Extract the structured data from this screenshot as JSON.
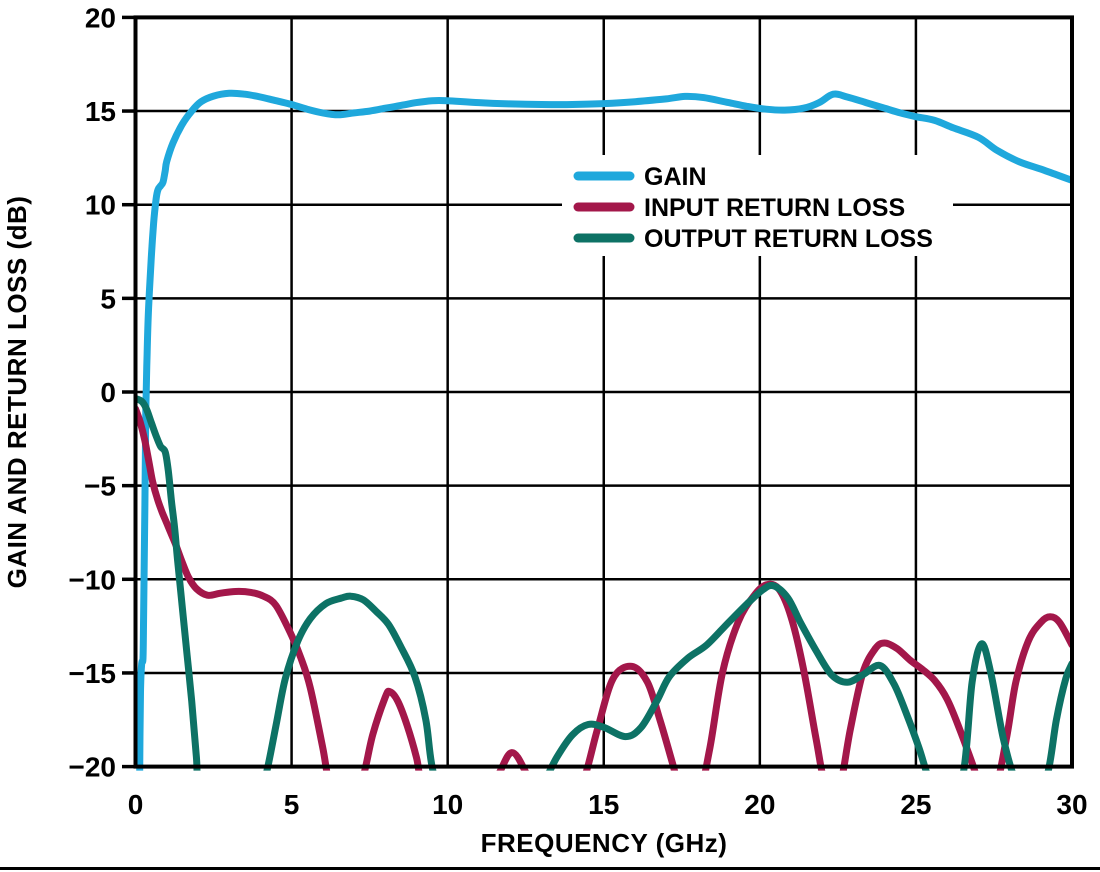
{
  "page": {
    "background": "#ffffff",
    "border_color": "#000000"
  },
  "chart_data": {
    "type": "line",
    "title": "",
    "xlabel": "FREQUENCY (GHz)",
    "ylabel": "GAIN AND RETURN LOSS (dB)",
    "xlim": [
      0,
      30
    ],
    "ylim": [
      -20,
      20
    ],
    "x_ticks": [
      0,
      5,
      10,
      15,
      20,
      25,
      30
    ],
    "y_ticks": [
      20,
      15,
      10,
      5,
      0,
      -5,
      -10,
      -15,
      -20
    ],
    "grid": true,
    "legend_position": "inside upper-center",
    "series": [
      {
        "name": "GAIN",
        "color": "#1FA8DC",
        "points": [
          [
            0.13,
            -21
          ],
          [
            0.16,
            -16
          ],
          [
            0.2,
            -14.5
          ],
          [
            0.24,
            -14.2
          ],
          [
            0.26,
            -12
          ],
          [
            0.3,
            -6
          ],
          [
            0.33,
            -1
          ],
          [
            0.37,
            2
          ],
          [
            0.42,
            4.5
          ],
          [
            0.5,
            7
          ],
          [
            0.58,
            9
          ],
          [
            0.66,
            10.3
          ],
          [
            0.72,
            10.8
          ],
          [
            0.8,
            11.0
          ],
          [
            0.88,
            11.2
          ],
          [
            0.95,
            11.8
          ],
          [
            1.0,
            12.3
          ],
          [
            1.2,
            13.3
          ],
          [
            1.5,
            14.3
          ],
          [
            1.8,
            15.0
          ],
          [
            2.1,
            15.5
          ],
          [
            2.5,
            15.8
          ],
          [
            3.0,
            15.95
          ],
          [
            3.5,
            15.9
          ],
          [
            4.0,
            15.75
          ],
          [
            4.5,
            15.55
          ],
          [
            5.0,
            15.35
          ],
          [
            5.5,
            15.1
          ],
          [
            6.0,
            14.9
          ],
          [
            6.5,
            14.8
          ],
          [
            7.0,
            14.9
          ],
          [
            7.5,
            15.0
          ],
          [
            8.0,
            15.15
          ],
          [
            8.5,
            15.3
          ],
          [
            9.0,
            15.45
          ],
          [
            9.5,
            15.55
          ],
          [
            10.0,
            15.55
          ],
          [
            11,
            15.45
          ],
          [
            12,
            15.38
          ],
          [
            13,
            15.35
          ],
          [
            14,
            15.35
          ],
          [
            15,
            15.4
          ],
          [
            16,
            15.5
          ],
          [
            17,
            15.65
          ],
          [
            17.6,
            15.78
          ],
          [
            18.2,
            15.72
          ],
          [
            19,
            15.45
          ],
          [
            19.6,
            15.25
          ],
          [
            20.2,
            15.1
          ],
          [
            20.8,
            15.05
          ],
          [
            21.4,
            15.15
          ],
          [
            21.9,
            15.45
          ],
          [
            22.35,
            15.9
          ],
          [
            22.8,
            15.75
          ],
          [
            23.4,
            15.45
          ],
          [
            24,
            15.15
          ],
          [
            24.5,
            14.9
          ],
          [
            25,
            14.7
          ],
          [
            25.6,
            14.5
          ],
          [
            26.2,
            14.1
          ],
          [
            27,
            13.6
          ],
          [
            27.6,
            12.9
          ],
          [
            28.3,
            12.3
          ],
          [
            29,
            11.9
          ],
          [
            29.5,
            11.6
          ],
          [
            30,
            11.3
          ]
        ]
      },
      {
        "name": "INPUT RETURN LOSS",
        "color": "#A3174A",
        "points": [
          [
            0,
            -0.9
          ],
          [
            0.15,
            -1.6
          ],
          [
            0.3,
            -2.6
          ],
          [
            0.45,
            -3.9
          ],
          [
            0.55,
            -4.8
          ],
          [
            0.7,
            -5.7
          ],
          [
            0.85,
            -6.4
          ],
          [
            1.0,
            -7.0
          ],
          [
            1.15,
            -7.6
          ],
          [
            1.3,
            -8.2
          ],
          [
            1.5,
            -9.1
          ],
          [
            1.7,
            -9.9
          ],
          [
            1.95,
            -10.5
          ],
          [
            2.3,
            -10.85
          ],
          [
            2.7,
            -10.75
          ],
          [
            3.2,
            -10.65
          ],
          [
            3.7,
            -10.7
          ],
          [
            4.1,
            -10.9
          ],
          [
            4.5,
            -11.4
          ],
          [
            5.0,
            -13.0
          ],
          [
            5.3,
            -14.2
          ],
          [
            5.6,
            -15.8
          ],
          [
            6.0,
            -19.0
          ],
          [
            6.3,
            -21.5
          ],
          [
            6.9,
            -22.5
          ],
          [
            7.3,
            -20.5
          ],
          [
            7.6,
            -18.3
          ],
          [
            8.0,
            -16.3
          ],
          [
            8.15,
            -16.0
          ],
          [
            8.4,
            -16.5
          ],
          [
            8.7,
            -17.8
          ],
          [
            9.0,
            -19.5
          ],
          [
            9.2,
            -21
          ],
          [
            9.9,
            -23
          ],
          [
            10.9,
            -22.5
          ],
          [
            11.6,
            -20.5
          ],
          [
            12.05,
            -19.25
          ],
          [
            12.5,
            -20.3
          ],
          [
            12.9,
            -22
          ],
          [
            13.6,
            -23
          ],
          [
            14.3,
            -21
          ],
          [
            14.8,
            -18
          ],
          [
            15.3,
            -15.3
          ],
          [
            15.9,
            -14.65
          ],
          [
            16.4,
            -15.5
          ],
          [
            16.8,
            -17.5
          ],
          [
            17.2,
            -19.8
          ],
          [
            17.5,
            -21.5
          ],
          [
            18.0,
            -21.8
          ],
          [
            18.4,
            -19
          ],
          [
            18.8,
            -15.0
          ],
          [
            19.3,
            -12.3
          ],
          [
            19.8,
            -10.9
          ],
          [
            20.2,
            -10.3
          ],
          [
            20.6,
            -10.5
          ],
          [
            21.0,
            -12
          ],
          [
            21.4,
            -14.8
          ],
          [
            21.8,
            -18.5
          ],
          [
            22.1,
            -21
          ],
          [
            22.5,
            -21.5
          ],
          [
            22.9,
            -18
          ],
          [
            23.3,
            -15
          ],
          [
            23.7,
            -13.7
          ],
          [
            24.0,
            -13.4
          ],
          [
            24.4,
            -13.7
          ],
          [
            24.8,
            -14.3
          ],
          [
            25.2,
            -14.8
          ],
          [
            25.6,
            -15.4
          ],
          [
            26.0,
            -16.4
          ],
          [
            26.4,
            -18
          ],
          [
            26.8,
            -19.8
          ],
          [
            27.1,
            -21.2
          ],
          [
            27.5,
            -21.5
          ],
          [
            27.9,
            -18.5
          ],
          [
            28.2,
            -15.5
          ],
          [
            28.6,
            -13.3
          ],
          [
            29.0,
            -12.3
          ],
          [
            29.3,
            -12.0
          ],
          [
            29.6,
            -12.3
          ],
          [
            30,
            -13.5
          ]
        ]
      },
      {
        "name": "OUTPUT RETURN LOSS",
        "color": "#0D7265",
        "points": [
          [
            0,
            -0.35
          ],
          [
            0.2,
            -0.5
          ],
          [
            0.35,
            -0.9
          ],
          [
            0.5,
            -1.6
          ],
          [
            0.65,
            -2.3
          ],
          [
            0.8,
            -2.9
          ],
          [
            0.95,
            -3.2
          ],
          [
            1.05,
            -4.2
          ],
          [
            1.15,
            -5.8
          ],
          [
            1.25,
            -7.2
          ],
          [
            1.35,
            -9.0
          ],
          [
            1.5,
            -11.5
          ],
          [
            1.65,
            -14
          ],
          [
            1.8,
            -16.5
          ],
          [
            1.95,
            -19.5
          ],
          [
            2.1,
            -22
          ],
          [
            3.0,
            -24
          ],
          [
            3.9,
            -22
          ],
          [
            4.2,
            -20.3
          ],
          [
            4.5,
            -17.8
          ],
          [
            4.8,
            -15.3
          ],
          [
            5.2,
            -13.3
          ],
          [
            5.6,
            -12.1
          ],
          [
            6.1,
            -11.3
          ],
          [
            6.6,
            -11.0
          ],
          [
            6.9,
            -10.9
          ],
          [
            7.3,
            -11.1
          ],
          [
            7.7,
            -11.7
          ],
          [
            8.1,
            -12.4
          ],
          [
            8.5,
            -13.6
          ],
          [
            8.95,
            -15.2
          ],
          [
            9.3,
            -17.5
          ],
          [
            9.5,
            -20
          ],
          [
            9.9,
            -22.5
          ],
          [
            11,
            -23.5
          ],
          [
            12.5,
            -22.5
          ],
          [
            13.1,
            -20.8
          ],
          [
            13.5,
            -19.5
          ],
          [
            14.0,
            -18.3
          ],
          [
            14.5,
            -17.75
          ],
          [
            15.0,
            -17.9
          ],
          [
            15.7,
            -18.4
          ],
          [
            16.2,
            -17.9
          ],
          [
            16.7,
            -16.5
          ],
          [
            17.1,
            -15.2
          ],
          [
            17.7,
            -14.2
          ],
          [
            18.3,
            -13.5
          ],
          [
            19.0,
            -12.3
          ],
          [
            19.6,
            -11.3
          ],
          [
            20.1,
            -10.55
          ],
          [
            20.45,
            -10.35
          ],
          [
            20.9,
            -11
          ],
          [
            21.3,
            -12.3
          ],
          [
            21.8,
            -13.8
          ],
          [
            22.3,
            -15.1
          ],
          [
            22.8,
            -15.5
          ],
          [
            23.3,
            -15.1
          ],
          [
            23.85,
            -14.6
          ],
          [
            24.3,
            -15.6
          ],
          [
            24.7,
            -17.2
          ],
          [
            25.1,
            -19
          ],
          [
            25.45,
            -20.8
          ],
          [
            25.9,
            -22
          ],
          [
            26.5,
            -20.5
          ],
          [
            26.8,
            -15.5
          ],
          [
            27.1,
            -13.45
          ],
          [
            27.4,
            -15
          ],
          [
            27.8,
            -18.5
          ],
          [
            28.2,
            -20.8
          ],
          [
            28.7,
            -22
          ],
          [
            29.2,
            -20.5
          ],
          [
            29.5,
            -17.5
          ],
          [
            29.8,
            -15.3
          ],
          [
            30,
            -14.5
          ]
        ]
      }
    ]
  }
}
